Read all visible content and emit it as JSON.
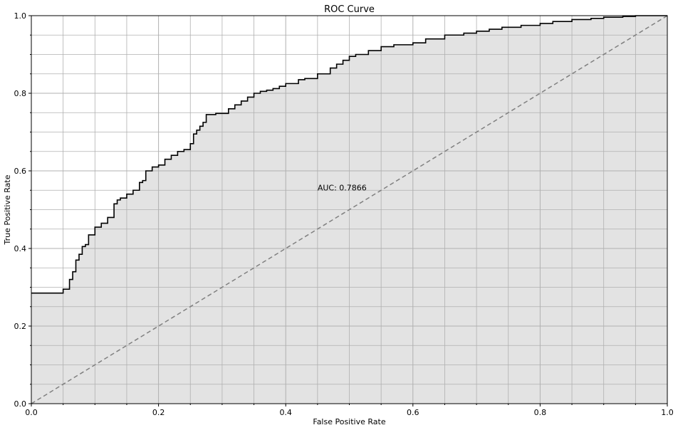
{
  "chart_data": {
    "type": "line",
    "title": "ROC Curve",
    "xlabel": "False Positive Rate",
    "ylabel": "True Positive Rate",
    "xlim": [
      0,
      1
    ],
    "ylim": [
      0,
      1
    ],
    "xticks": [
      0.0,
      0.2,
      0.4,
      0.6,
      0.8,
      1.0
    ],
    "yticks": [
      0.0,
      0.2,
      0.4,
      0.6,
      0.8,
      1.0
    ],
    "xtick_labels": [
      "0.0",
      "0.2",
      "0.4",
      "0.6",
      "0.8",
      "1.0"
    ],
    "ytick_labels": [
      "0.0",
      "0.2",
      "0.4",
      "0.6",
      "0.8",
      "1.0"
    ],
    "grid": true,
    "minor_grid": true,
    "annotation": "AUC: 0.7866",
    "auc": 0.7866,
    "colors": {
      "curve": "#000000",
      "fill": "#e3e3e3",
      "diagonal": "#808080",
      "grid": "#b0b0b0"
    },
    "series": [
      {
        "style": "step",
        "x": [
          0.0,
          0.05,
          0.05,
          0.06,
          0.065,
          0.07,
          0.07,
          0.075,
          0.08,
          0.085,
          0.09,
          0.09,
          0.1,
          0.1,
          0.105,
          0.11,
          0.12,
          0.13,
          0.135,
          0.14,
          0.15,
          0.16,
          0.17,
          0.175,
          0.18,
          0.19,
          0.2,
          0.21,
          0.22,
          0.23,
          0.24,
          0.25,
          0.255,
          0.26,
          0.265,
          0.27,
          0.275,
          0.28,
          0.29,
          0.31,
          0.32,
          0.33,
          0.34,
          0.35,
          0.36,
          0.37,
          0.38,
          0.39,
          0.4,
          0.42,
          0.43,
          0.45,
          0.47,
          0.48,
          0.49,
          0.5,
          0.51,
          0.53,
          0.55,
          0.57,
          0.6,
          0.62,
          0.65,
          0.68,
          0.7,
          0.72,
          0.74,
          0.77,
          0.8,
          0.82,
          0.85,
          0.88,
          0.9,
          0.93,
          0.95,
          1.0
        ],
        "y": [
          0.285,
          0.285,
          0.295,
          0.32,
          0.34,
          0.36,
          0.37,
          0.385,
          0.405,
          0.41,
          0.42,
          0.435,
          0.45,
          0.455,
          0.455,
          0.465,
          0.48,
          0.515,
          0.525,
          0.53,
          0.54,
          0.55,
          0.57,
          0.575,
          0.6,
          0.61,
          0.615,
          0.63,
          0.64,
          0.65,
          0.655,
          0.67,
          0.695,
          0.705,
          0.715,
          0.725,
          0.745,
          0.745,
          0.748,
          0.76,
          0.77,
          0.78,
          0.79,
          0.8,
          0.805,
          0.808,
          0.812,
          0.818,
          0.825,
          0.835,
          0.838,
          0.85,
          0.865,
          0.875,
          0.885,
          0.895,
          0.9,
          0.91,
          0.92,
          0.925,
          0.93,
          0.94,
          0.95,
          0.955,
          0.96,
          0.965,
          0.97,
          0.975,
          0.98,
          0.985,
          0.99,
          0.993,
          0.996,
          0.998,
          1.0,
          1.0
        ]
      },
      {
        "style": "dashed",
        "x": [
          0.0,
          1.0
        ],
        "y": [
          0.0,
          1.0
        ]
      }
    ]
  }
}
